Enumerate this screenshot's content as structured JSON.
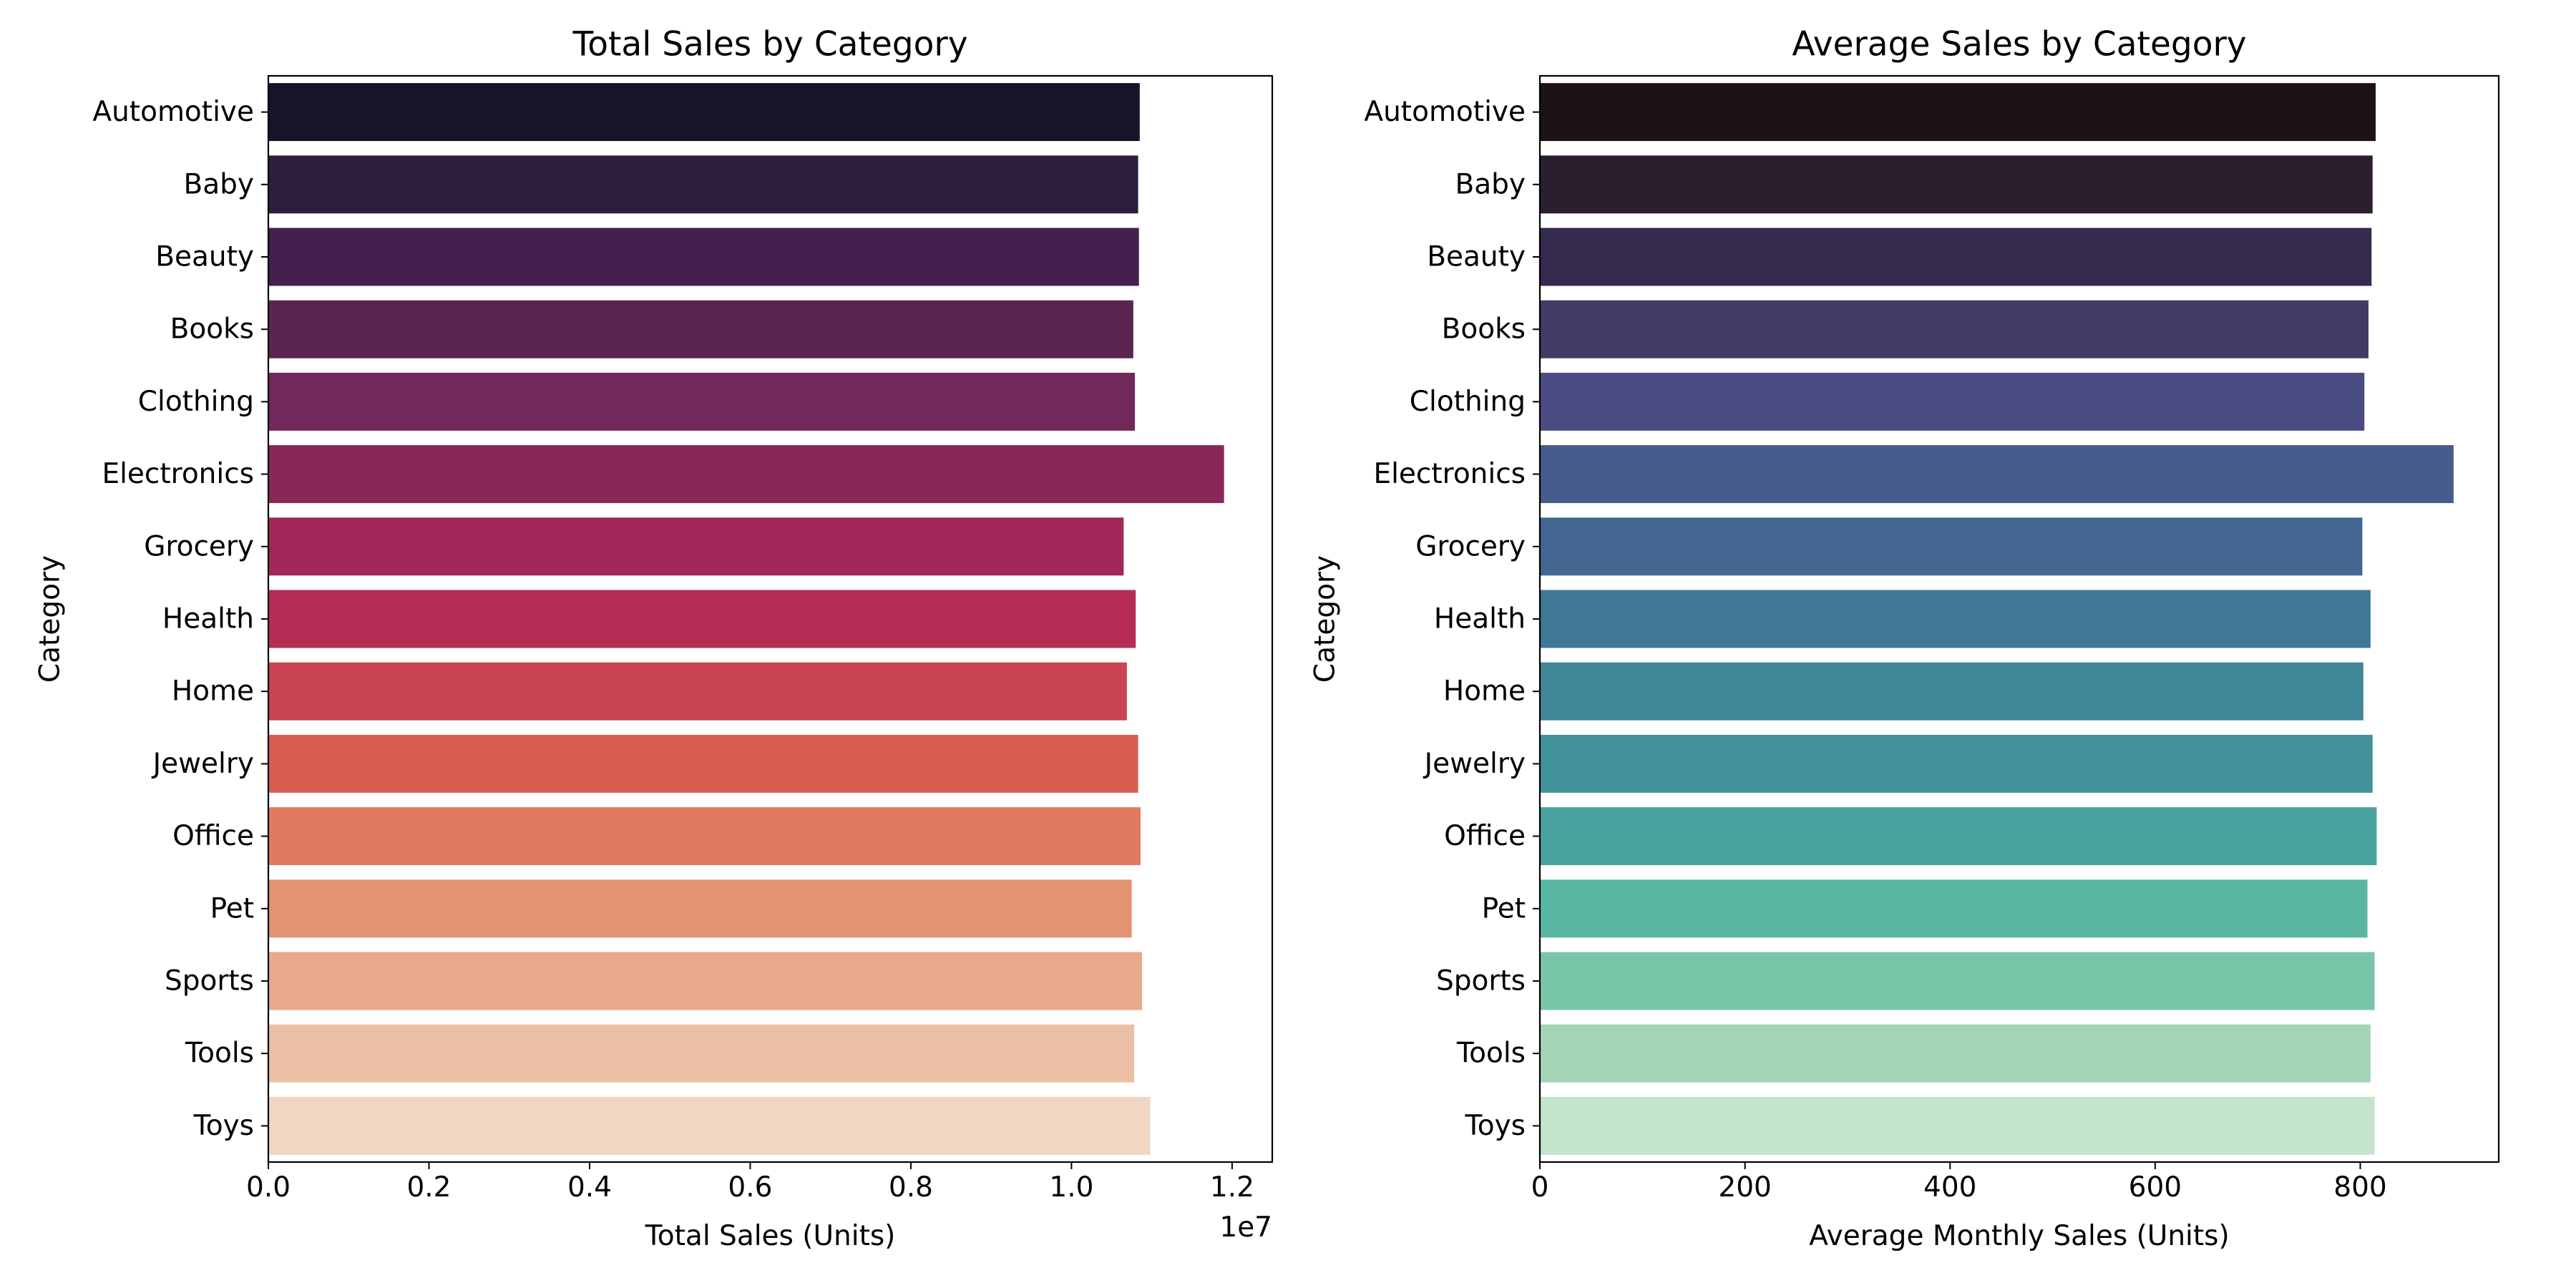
{
  "chart_data": [
    {
      "type": "bar",
      "orientation": "horizontal",
      "title": "Total Sales by Category",
      "xlabel": "Total Sales (Units)",
      "ylabel": "Category",
      "axis_offset_label": "1e7",
      "xlim": [
        0,
        1.25
      ],
      "xticks": [
        "0.0",
        "0.2",
        "0.4",
        "0.6",
        "0.8",
        "1.0",
        "1.2"
      ],
      "xtick_values": [
        0.0,
        0.2,
        0.4,
        0.6,
        0.8,
        1.0,
        1.2
      ],
      "categories": [
        "Automotive",
        "Baby",
        "Beauty",
        "Books",
        "Clothing",
        "Electronics",
        "Grocery",
        "Health",
        "Home",
        "Jewelry",
        "Office",
        "Pet",
        "Sports",
        "Tools",
        "Toys"
      ],
      "values": [
        1.085,
        1.083,
        1.084,
        1.077,
        1.079,
        1.19,
        1.065,
        1.08,
        1.069,
        1.083,
        1.086,
        1.075,
        1.088,
        1.078,
        1.098
      ],
      "palette": "rocket",
      "colors": [
        "#181326",
        "#2e1d3c",
        "#43204e",
        "#5a2551",
        "#71285a",
        "#882859",
        "#a12659",
        "#b52d55",
        "#c94453",
        "#d95e52",
        "#e07a61",
        "#e49373",
        "#e8a98a",
        "#ebbfa4",
        "#f0d6c3"
      ]
    },
    {
      "type": "bar",
      "orientation": "horizontal",
      "title": "Average Sales by Category",
      "xlabel": "Average Monthly Sales (Units)",
      "ylabel": "Category",
      "xlim": [
        0,
        935
      ],
      "xticks": [
        "0",
        "200",
        "400",
        "600",
        "800"
      ],
      "xtick_values": [
        0,
        200,
        400,
        600,
        800
      ],
      "categories": [
        "Automotive",
        "Baby",
        "Beauty",
        "Books",
        "Clothing",
        "Electronics",
        "Grocery",
        "Health",
        "Home",
        "Jewelry",
        "Office",
        "Pet",
        "Sports",
        "Tools",
        "Toys"
      ],
      "values": [
        815,
        812,
        811,
        808,
        804,
        891,
        802,
        810,
        803,
        812,
        816,
        807,
        814,
        810,
        814
      ],
      "palette": "mako",
      "colors": [
        "#1e1219",
        "#2a1e2f",
        "#352b4e",
        "#433a66",
        "#4a4b80",
        "#475c8b",
        "#436790",
        "#3f7896",
        "#3f8697",
        "#41929a",
        "#4ba3a0",
        "#5ab6a2",
        "#78c6a8",
        "#a3d4b6",
        "#c5e4cc"
      ]
    }
  ]
}
